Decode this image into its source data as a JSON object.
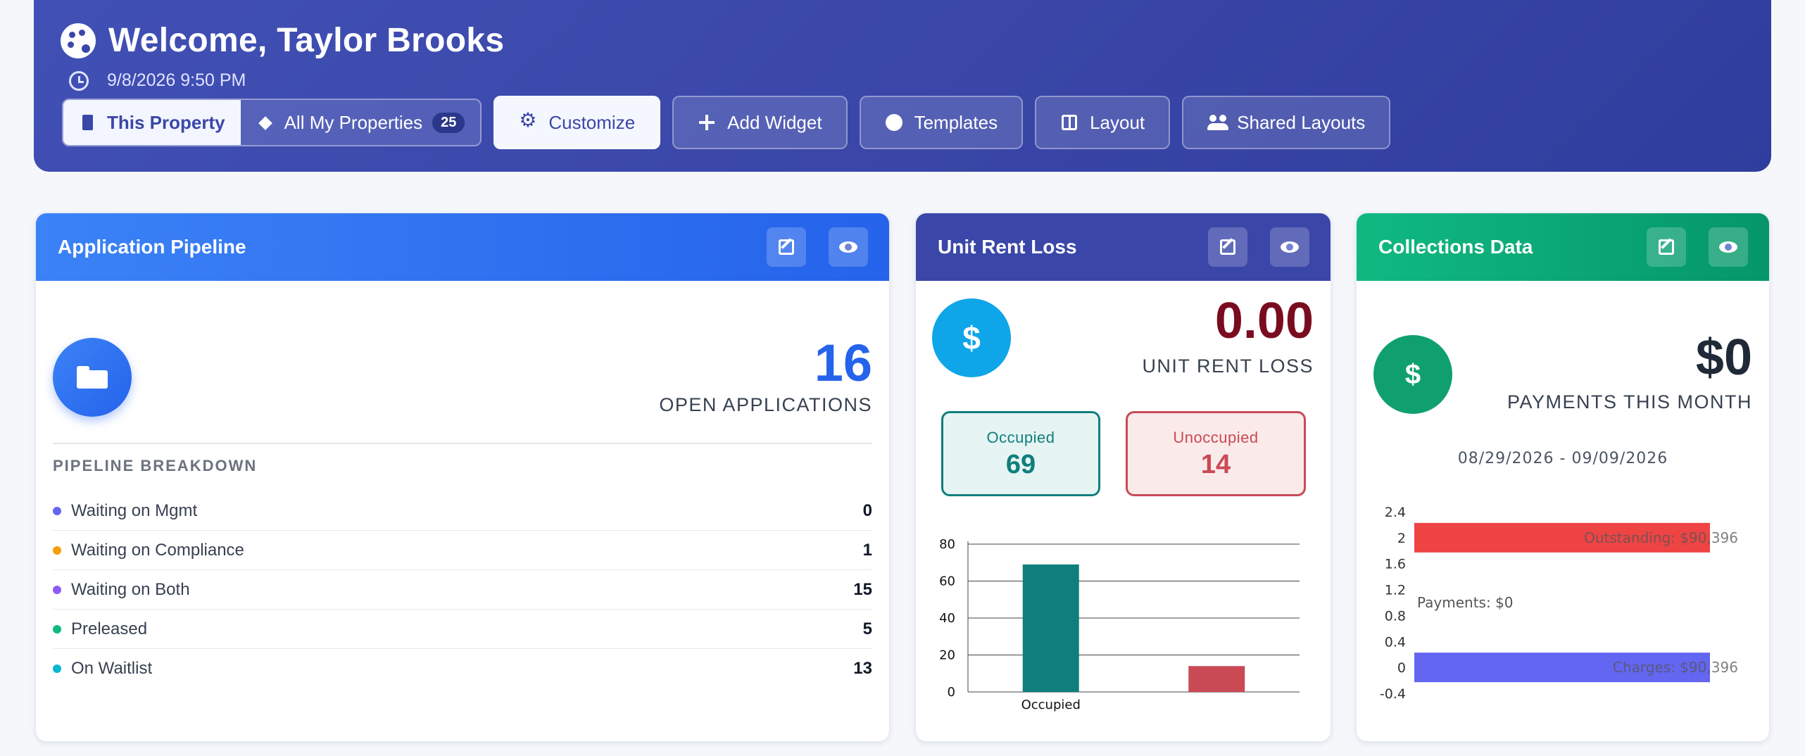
{
  "header": {
    "title": "Welcome, Taylor Brooks",
    "datetime": "9/8/2026 9:50 PM",
    "scope": {
      "this_property": "This Property",
      "all_properties": "All My Properties",
      "property_count": "25"
    },
    "buttons": {
      "customize": "Customize",
      "add_widget": "Add Widget",
      "templates": "Templates",
      "layout": "Layout",
      "shared_layouts": "Shared Layouts"
    }
  },
  "pipeline": {
    "title": "Application Pipeline",
    "value": "16",
    "label": "OPEN APPLICATIONS",
    "breakdown_title": "PIPELINE BREAKDOWN",
    "items": [
      {
        "label": "Waiting on Mgmt",
        "value": "0",
        "color": "#6366f1"
      },
      {
        "label": "Waiting on Compliance",
        "value": "1",
        "color": "#f59e0b"
      },
      {
        "label": "Waiting on Both",
        "value": "15",
        "color": "#8b5cf6"
      },
      {
        "label": "Preleased",
        "value": "5",
        "color": "#10b981"
      },
      {
        "label": "On Waitlist",
        "value": "13",
        "color": "#06b6d4"
      }
    ]
  },
  "rent_loss": {
    "title": "Unit Rent Loss",
    "icon": "$",
    "value": "0.00",
    "label": "UNIT RENT LOSS",
    "occupied_label": "Occupied",
    "occupied_value": "69",
    "unoccupied_label": "Unoccupied",
    "unoccupied_value": "14"
  },
  "collections": {
    "title": "Collections Data",
    "icon": "$",
    "value": "$0",
    "label": "PAYMENTS THIS MONTH",
    "date_range": "08/29/2026 - 09/09/2026"
  },
  "chart_data": [
    {
      "type": "bar",
      "categories": [
        "Occupied",
        "Unoccupied"
      ],
      "visible_tick_labels": [
        "Occupied"
      ],
      "values": [
        69,
        14
      ],
      "colors": [
        "#0f7f7d",
        "#c94a55"
      ],
      "ylim": [
        0,
        80
      ],
      "yticks": [
        "0",
        "20",
        "40",
        "60",
        "80"
      ],
      "grid": true
    },
    {
      "type": "bar",
      "orientation": "horizontal",
      "yticks": [
        "2.4",
        "2",
        "1.6",
        "1.2",
        "0.8",
        "0.4",
        "0",
        "-0.4"
      ],
      "ylim": [
        -0.4,
        2.4
      ],
      "bars": [
        {
          "position": 2,
          "label": "Outstanding: $90,396",
          "color": "#ef4444"
        },
        {
          "position": 1,
          "label": "Payments: $0",
          "color": "#6366f1"
        },
        {
          "position": 0,
          "label": "Charges: $90,396",
          "color": "#6366f1"
        }
      ]
    }
  ]
}
